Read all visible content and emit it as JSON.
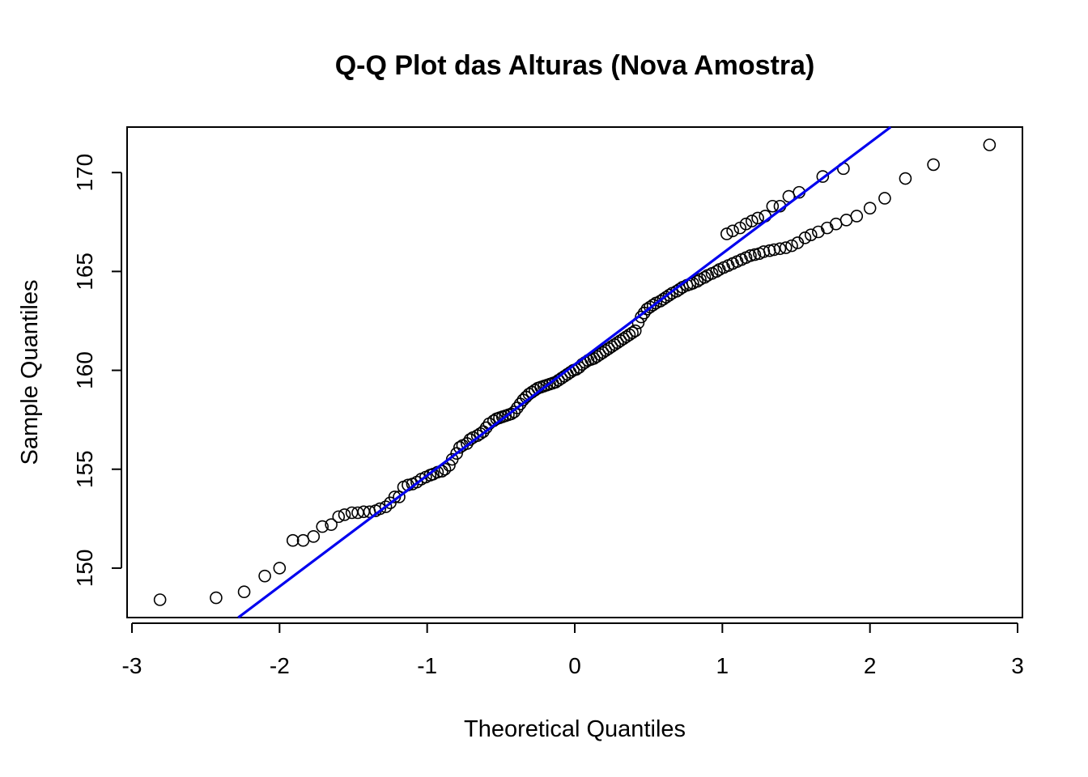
{
  "chart_data": {
    "type": "scatter",
    "title": "Q-Q Plot das Alturas (Nova Amostra)",
    "xlabel": "Theoretical Quantiles",
    "ylabel": "Sample Quantiles",
    "xlim": [
      -3,
      3
    ],
    "ylim": [
      147.5,
      172.3
    ],
    "x_ticks": [
      "-3",
      "-2",
      "-1",
      "0",
      "1",
      "2",
      "3"
    ],
    "y_ticks": [
      "150",
      "155",
      "160",
      "165",
      "170"
    ],
    "grid": false,
    "point_style": "open-circle",
    "point_color": "#000000",
    "reference_line": {
      "color": "#0000ee",
      "x1": -2.28,
      "y1": 147.5,
      "x2": 2.14,
      "y2": 172.3
    },
    "series": [
      {
        "values": [
          [
            -2.81,
            148.4
          ],
          [
            -2.43,
            148.5
          ],
          [
            -2.24,
            148.8
          ],
          [
            -2.1,
            149.6
          ],
          [
            -2.0,
            150.0
          ],
          [
            -1.91,
            151.4
          ],
          [
            -1.84,
            151.4
          ],
          [
            -1.77,
            151.6
          ],
          [
            -1.71,
            152.1
          ],
          [
            -1.65,
            152.2
          ],
          [
            -1.6,
            152.6
          ],
          [
            -1.56,
            152.7
          ],
          [
            -1.51,
            152.8
          ],
          [
            -1.47,
            152.8
          ],
          [
            -1.43,
            152.85
          ],
          [
            -1.39,
            152.85
          ],
          [
            -1.35,
            152.9
          ],
          [
            -1.32,
            153.0
          ],
          [
            -1.28,
            153.1
          ],
          [
            -1.25,
            153.3
          ],
          [
            -1.22,
            153.6
          ],
          [
            -1.19,
            153.6
          ],
          [
            -1.16,
            154.1
          ],
          [
            -1.13,
            154.2
          ],
          [
            -1.1,
            154.25
          ],
          [
            -1.07,
            154.35
          ],
          [
            -1.04,
            154.5
          ],
          [
            -1.01,
            154.6
          ],
          [
            -0.98,
            154.7
          ],
          [
            -0.96,
            154.75
          ],
          [
            -0.93,
            154.85
          ],
          [
            -0.9,
            154.9
          ],
          [
            -0.88,
            155.0
          ],
          [
            -0.85,
            155.2
          ],
          [
            -0.83,
            155.5
          ],
          [
            -0.8,
            155.8
          ],
          [
            -0.78,
            156.1
          ],
          [
            -0.76,
            156.2
          ],
          [
            -0.73,
            156.3
          ],
          [
            -0.71,
            156.5
          ],
          [
            -0.69,
            156.6
          ],
          [
            -0.66,
            156.7
          ],
          [
            -0.64,
            156.8
          ],
          [
            -0.62,
            156.9
          ],
          [
            -0.6,
            157.1
          ],
          [
            -0.58,
            157.3
          ],
          [
            -0.55,
            157.45
          ],
          [
            -0.53,
            157.55
          ],
          [
            -0.51,
            157.6
          ],
          [
            -0.49,
            157.65
          ],
          [
            -0.47,
            157.7
          ],
          [
            -0.45,
            157.75
          ],
          [
            -0.43,
            157.8
          ],
          [
            -0.41,
            157.9
          ],
          [
            -0.39,
            158.1
          ],
          [
            -0.37,
            158.3
          ],
          [
            -0.35,
            158.5
          ],
          [
            -0.33,
            158.65
          ],
          [
            -0.31,
            158.8
          ],
          [
            -0.29,
            158.9
          ],
          [
            -0.27,
            159.0
          ],
          [
            -0.25,
            159.1
          ],
          [
            -0.23,
            159.15
          ],
          [
            -0.21,
            159.2
          ],
          [
            -0.19,
            159.25
          ],
          [
            -0.17,
            159.3
          ],
          [
            -0.15,
            159.35
          ],
          [
            -0.13,
            159.4
          ],
          [
            -0.11,
            159.5
          ],
          [
            -0.09,
            159.6
          ],
          [
            -0.07,
            159.7
          ],
          [
            -0.05,
            159.8
          ],
          [
            -0.03,
            159.9
          ],
          [
            -0.01,
            160.0
          ],
          [
            0.01,
            160.05
          ],
          [
            0.03,
            160.15
          ],
          [
            0.05,
            160.3
          ],
          [
            0.07,
            160.4
          ],
          [
            0.09,
            160.5
          ],
          [
            0.11,
            160.55
          ],
          [
            0.13,
            160.6
          ],
          [
            0.15,
            160.7
          ],
          [
            0.17,
            160.8
          ],
          [
            0.19,
            160.9
          ],
          [
            0.21,
            161.0
          ],
          [
            0.23,
            161.1
          ],
          [
            0.25,
            161.2
          ],
          [
            0.27,
            161.3
          ],
          [
            0.29,
            161.4
          ],
          [
            0.31,
            161.5
          ],
          [
            0.33,
            161.6
          ],
          [
            0.35,
            161.7
          ],
          [
            0.37,
            161.8
          ],
          [
            0.39,
            161.9
          ],
          [
            0.41,
            162.0
          ],
          [
            0.43,
            162.4
          ],
          [
            0.45,
            162.7
          ],
          [
            0.47,
            162.9
          ],
          [
            0.49,
            163.1
          ],
          [
            0.51,
            163.2
          ],
          [
            0.53,
            163.3
          ],
          [
            0.55,
            163.4
          ],
          [
            0.58,
            163.5
          ],
          [
            0.6,
            163.6
          ],
          [
            0.62,
            163.7
          ],
          [
            0.64,
            163.8
          ],
          [
            0.66,
            163.9
          ],
          [
            0.69,
            164.0
          ],
          [
            0.71,
            164.1
          ],
          [
            0.73,
            164.2
          ],
          [
            0.76,
            164.3
          ],
          [
            0.78,
            164.35
          ],
          [
            0.8,
            164.4
          ],
          [
            0.83,
            164.5
          ],
          [
            0.85,
            164.6
          ],
          [
            0.88,
            164.7
          ],
          [
            0.9,
            164.8
          ],
          [
            0.93,
            164.9
          ],
          [
            0.96,
            165.0
          ],
          [
            0.98,
            165.1
          ],
          [
            1.01,
            165.2
          ],
          [
            1.04,
            165.3
          ],
          [
            1.07,
            165.4
          ],
          [
            1.1,
            165.5
          ],
          [
            1.13,
            165.6
          ],
          [
            1.16,
            165.7
          ],
          [
            1.19,
            165.8
          ],
          [
            1.22,
            165.85
          ],
          [
            1.25,
            165.9
          ],
          [
            1.28,
            166.0
          ],
          [
            1.32,
            166.05
          ],
          [
            1.35,
            166.1
          ],
          [
            1.39,
            166.15
          ],
          [
            1.43,
            166.2
          ],
          [
            1.47,
            166.3
          ],
          [
            1.51,
            166.45
          ],
          [
            1.56,
            166.7
          ],
          [
            1.6,
            166.85
          ],
          [
            1.65,
            167.0
          ],
          [
            1.71,
            167.2
          ],
          [
            1.77,
            167.4
          ],
          [
            1.84,
            167.6
          ],
          [
            1.91,
            167.8
          ],
          [
            2.0,
            168.2
          ],
          [
            2.1,
            168.7
          ],
          [
            2.24,
            169.7
          ],
          [
            2.43,
            170.4
          ],
          [
            2.81,
            171.4
          ],
          [
            1.03,
            166.9
          ],
          [
            1.07,
            167.05
          ],
          [
            1.12,
            167.2
          ],
          [
            1.16,
            167.4
          ],
          [
            1.2,
            167.55
          ],
          [
            1.24,
            167.7
          ],
          [
            1.29,
            167.8
          ],
          [
            1.34,
            168.3
          ],
          [
            1.39,
            168.3
          ],
          [
            1.45,
            168.8
          ],
          [
            1.52,
            169.0
          ],
          [
            1.68,
            169.8
          ],
          [
            1.82,
            170.2
          ]
        ]
      }
    ]
  }
}
